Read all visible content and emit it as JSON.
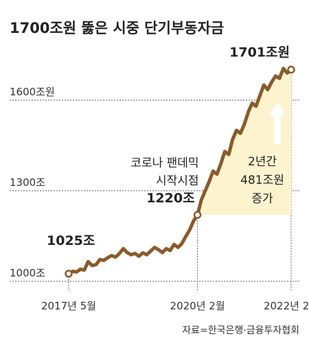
{
  "chart_data": {
    "type": "area",
    "title": "1700조원 뚫은 시중 단기부동자금",
    "source": "자료=한국은행·금융투자협회",
    "ylim": [
      1000,
      1760
    ],
    "y_ticks": [
      {
        "value": 1000,
        "label": "1000조"
      },
      {
        "value": 1300,
        "label": "1300조"
      },
      {
        "value": 1600,
        "label": "1600조원"
      }
    ],
    "x_ticks": [
      {
        "index": 0,
        "label": "2017년 5월"
      },
      {
        "index": 33,
        "label": "2020년 2월"
      },
      {
        "index": 57,
        "label": "2022년 2월"
      }
    ],
    "series": [
      {
        "values": [
          1025,
          1033,
          1031,
          1040,
          1037,
          1065,
          1052,
          1055,
          1072,
          1069,
          1078,
          1085,
          1080,
          1092,
          1108,
          1095,
          1088,
          1092,
          1083,
          1094,
          1088,
          1100,
          1112,
          1105,
          1095,
          1108,
          1102,
          1122,
          1112,
          1125,
          1148,
          1170,
          1200,
          1220,
          1270,
          1300,
          1330,
          1365,
          1355,
          1390,
          1430,
          1420,
          1470,
          1500,
          1490,
          1520,
          1560,
          1590,
          1580,
          1615,
          1650,
          1635,
          1660,
          1680,
          1672,
          1705,
          1690,
          1701
        ]
      }
    ],
    "highlight": {
      "from_index": 33,
      "to_index": 57,
      "base": 1220
    },
    "annotations": [
      {
        "index": 0,
        "value_label": "1025조"
      },
      {
        "index": 33,
        "value_label": "1220조",
        "note": [
          "코로나 팬데믹",
          "시작시점"
        ]
      },
      {
        "index": 57,
        "value_label": "1701조원"
      }
    ],
    "increase_label": [
      "2년간",
      "481조원",
      "증가"
    ]
  },
  "colors": {
    "line": "#8b5a2b",
    "highlight": "#fdf3cf",
    "arrow": "#ffffff",
    "text": "#222222",
    "grid": "#555555"
  }
}
